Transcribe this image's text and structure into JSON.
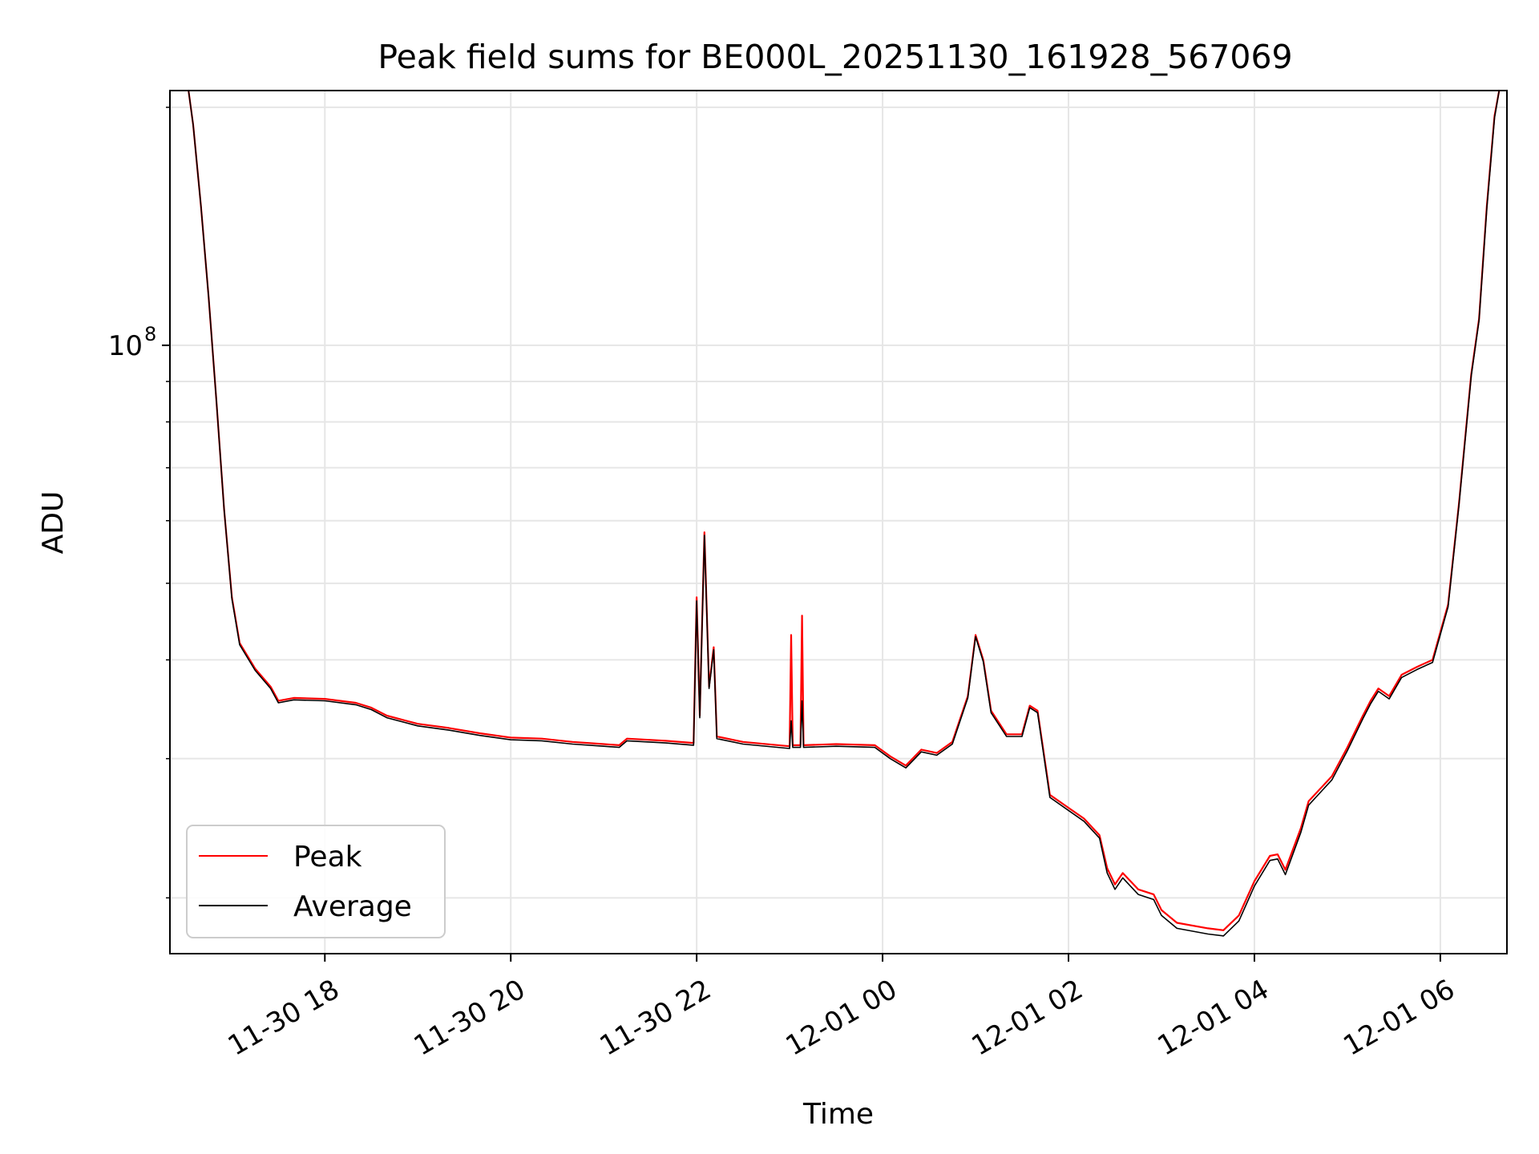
{
  "chart_data": {
    "type": "line",
    "title": "Peak field sums for BE000L_20251130_161928_567069",
    "xlabel": "Time",
    "ylabel": "ADU",
    "y_scale": "log",
    "grid": true,
    "legend_position": "lower-left",
    "x_ticks": [
      "11-30 18",
      "11-30 20",
      "11-30 22",
      "12-01 00",
      "12-01 02",
      "12-01 04",
      "12-01 06"
    ],
    "y_ticks": [
      {
        "label": "10",
        "exponent": "8",
        "value": 100000000
      }
    ],
    "xlim": [
      "2025-11-30 16:20",
      "2025-12-01 06:43"
    ],
    "ylim": [
      17000000,
      210000000
    ],
    "series": [
      {
        "name": "Peak",
        "color": "#ff0000",
        "points": [
          [
            "2025-11-30 16:32",
            210000000
          ],
          [
            "2025-11-30 16:35",
            190000000
          ],
          [
            "2025-11-30 16:40",
            150000000
          ],
          [
            "2025-11-30 16:45",
            115000000
          ],
          [
            "2025-11-30 16:50",
            85000000
          ],
          [
            "2025-11-30 16:55",
            62000000
          ],
          [
            "2025-11-30 17:00",
            48000000
          ],
          [
            "2025-11-30 17:05",
            42000000
          ],
          [
            "2025-11-30 17:15",
            39000000
          ],
          [
            "2025-11-30 17:25",
            37000000
          ],
          [
            "2025-11-30 17:30",
            35500000
          ],
          [
            "2025-11-30 17:40",
            35800000
          ],
          [
            "2025-11-30 18:00",
            35700000
          ],
          [
            "2025-11-30 18:20",
            35300000
          ],
          [
            "2025-11-30 18:30",
            34800000
          ],
          [
            "2025-11-30 18:40",
            34000000
          ],
          [
            "2025-11-30 19:00",
            33200000
          ],
          [
            "2025-11-30 19:20",
            32800000
          ],
          [
            "2025-11-30 19:40",
            32300000
          ],
          [
            "2025-11-30 20:00",
            31900000
          ],
          [
            "2025-11-30 20:20",
            31800000
          ],
          [
            "2025-11-30 20:40",
            31500000
          ],
          [
            "2025-11-30 21:00",
            31300000
          ],
          [
            "2025-11-30 21:10",
            31200000
          ],
          [
            "2025-11-30 21:15",
            31800000
          ],
          [
            "2025-11-30 21:40",
            31600000
          ],
          [
            "2025-11-30 21:58",
            31400000
          ],
          [
            "2025-11-30 22:00",
            48000000
          ],
          [
            "2025-11-30 22:02",
            34000000
          ],
          [
            "2025-11-30 22:05",
            58000000
          ],
          [
            "2025-11-30 22:08",
            37000000
          ],
          [
            "2025-11-30 22:11",
            41500000
          ],
          [
            "2025-11-30 22:13",
            32000000
          ],
          [
            "2025-11-30 22:30",
            31500000
          ],
          [
            "2025-11-30 23:00",
            31100000
          ],
          [
            "2025-11-30 23:01",
            43000000
          ],
          [
            "2025-11-30 23:02",
            31200000
          ],
          [
            "2025-11-30 23:07",
            31200000
          ],
          [
            "2025-11-30 23:08",
            45500000
          ],
          [
            "2025-11-30 23:09",
            31200000
          ],
          [
            "2025-11-30 23:30",
            31300000
          ],
          [
            "2025-11-30 23:55",
            31200000
          ],
          [
            "2025-12-01 00:05",
            30200000
          ],
          [
            "2025-12-01 00:15",
            29400000
          ],
          [
            "2025-12-01 00:25",
            30800000
          ],
          [
            "2025-12-01 00:35",
            30500000
          ],
          [
            "2025-12-01 00:45",
            31500000
          ],
          [
            "2025-12-01 00:55",
            36000000
          ],
          [
            "2025-12-01 01:00",
            43000000
          ],
          [
            "2025-12-01 01:05",
            40000000
          ],
          [
            "2025-12-01 01:10",
            34500000
          ],
          [
            "2025-12-01 01:20",
            32200000
          ],
          [
            "2025-12-01 01:30",
            32200000
          ],
          [
            "2025-12-01 01:35",
            35000000
          ],
          [
            "2025-12-01 01:40",
            34500000
          ],
          [
            "2025-12-01 01:48",
            27000000
          ],
          [
            "2025-12-01 02:00",
            26000000
          ],
          [
            "2025-12-01 02:10",
            25200000
          ],
          [
            "2025-12-01 02:20",
            24000000
          ],
          [
            "2025-12-01 02:25",
            21800000
          ],
          [
            "2025-12-01 02:30",
            20800000
          ],
          [
            "2025-12-01 02:35",
            21500000
          ],
          [
            "2025-12-01 02:45",
            20500000
          ],
          [
            "2025-12-01 02:55",
            20200000
          ],
          [
            "2025-12-01 03:00",
            19300000
          ],
          [
            "2025-12-01 03:10",
            18600000
          ],
          [
            "2025-12-01 03:30",
            18300000
          ],
          [
            "2025-12-01 03:40",
            18200000
          ],
          [
            "2025-12-01 03:50",
            19000000
          ],
          [
            "2025-12-01 04:00",
            21000000
          ],
          [
            "2025-12-01 04:10",
            22600000
          ],
          [
            "2025-12-01 04:15",
            22700000
          ],
          [
            "2025-12-01 04:20",
            21700000
          ],
          [
            "2025-12-01 04:30",
            24500000
          ],
          [
            "2025-12-01 04:35",
            26500000
          ],
          [
            "2025-12-01 04:50",
            28500000
          ],
          [
            "2025-12-01 05:00",
            31000000
          ],
          [
            "2025-12-01 05:10",
            34000000
          ],
          [
            "2025-12-01 05:15",
            35500000
          ],
          [
            "2025-12-01 05:20",
            36800000
          ],
          [
            "2025-12-01 05:27",
            36000000
          ],
          [
            "2025-12-01 05:35",
            38300000
          ],
          [
            "2025-12-01 05:45",
            39200000
          ],
          [
            "2025-12-01 05:55",
            40000000
          ],
          [
            "2025-12-01 06:05",
            47000000
          ],
          [
            "2025-12-01 06:12",
            63000000
          ],
          [
            "2025-12-01 06:20",
            92000000
          ],
          [
            "2025-12-01 06:25",
            108000000
          ],
          [
            "2025-12-01 06:30",
            150000000
          ],
          [
            "2025-12-01 06:35",
            195000000
          ],
          [
            "2025-12-01 06:38",
            210000000
          ]
        ]
      },
      {
        "name": "Average",
        "color": "#000000",
        "points": [
          [
            "2025-11-30 16:32",
            210000000
          ],
          [
            "2025-11-30 16:35",
            190000000
          ],
          [
            "2025-11-30 16:40",
            150000000
          ],
          [
            "2025-11-30 16:45",
            115000000
          ],
          [
            "2025-11-30 16:50",
            85000000
          ],
          [
            "2025-11-30 16:55",
            62000000
          ],
          [
            "2025-11-30 17:00",
            47800000
          ],
          [
            "2025-11-30 17:05",
            41800000
          ],
          [
            "2025-11-30 17:15",
            38800000
          ],
          [
            "2025-11-30 17:25",
            36800000
          ],
          [
            "2025-11-30 17:30",
            35300000
          ],
          [
            "2025-11-30 17:40",
            35600000
          ],
          [
            "2025-11-30 18:00",
            35500000
          ],
          [
            "2025-11-30 18:20",
            35100000
          ],
          [
            "2025-11-30 18:30",
            34600000
          ],
          [
            "2025-11-30 18:40",
            33800000
          ],
          [
            "2025-11-30 19:00",
            33000000
          ],
          [
            "2025-11-30 19:20",
            32600000
          ],
          [
            "2025-11-30 19:40",
            32100000
          ],
          [
            "2025-11-30 20:00",
            31700000
          ],
          [
            "2025-11-30 20:20",
            31600000
          ],
          [
            "2025-11-30 20:40",
            31300000
          ],
          [
            "2025-11-30 21:00",
            31100000
          ],
          [
            "2025-11-30 21:10",
            31000000
          ],
          [
            "2025-11-30 21:15",
            31600000
          ],
          [
            "2025-11-30 21:40",
            31400000
          ],
          [
            "2025-11-30 21:58",
            31200000
          ],
          [
            "2025-11-30 22:00",
            47500000
          ],
          [
            "2025-11-30 22:02",
            33800000
          ],
          [
            "2025-11-30 22:05",
            57500000
          ],
          [
            "2025-11-30 22:08",
            36800000
          ],
          [
            "2025-11-30 22:11",
            41200000
          ],
          [
            "2025-11-30 22:13",
            31800000
          ],
          [
            "2025-11-30 22:30",
            31300000
          ],
          [
            "2025-11-30 23:00",
            30900000
          ],
          [
            "2025-11-30 23:01",
            33500000
          ],
          [
            "2025-11-30 23:02",
            31000000
          ],
          [
            "2025-11-30 23:07",
            31000000
          ],
          [
            "2025-11-30 23:08",
            35500000
          ],
          [
            "2025-11-30 23:09",
            31000000
          ],
          [
            "2025-11-30 23:30",
            31100000
          ],
          [
            "2025-11-30 23:55",
            31000000
          ],
          [
            "2025-12-01 00:05",
            30000000
          ],
          [
            "2025-12-01 00:15",
            29200000
          ],
          [
            "2025-12-01 00:25",
            30600000
          ],
          [
            "2025-12-01 00:35",
            30300000
          ],
          [
            "2025-12-01 00:45",
            31300000
          ],
          [
            "2025-12-01 00:55",
            35800000
          ],
          [
            "2025-12-01 01:00",
            42800000
          ],
          [
            "2025-12-01 01:05",
            39800000
          ],
          [
            "2025-12-01 01:10",
            34300000
          ],
          [
            "2025-12-01 01:20",
            32000000
          ],
          [
            "2025-12-01 01:30",
            32000000
          ],
          [
            "2025-12-01 01:35",
            34800000
          ],
          [
            "2025-12-01 01:40",
            34300000
          ],
          [
            "2025-12-01 01:48",
            26800000
          ],
          [
            "2025-12-01 02:00",
            25800000
          ],
          [
            "2025-12-01 02:10",
            25000000
          ],
          [
            "2025-12-01 02:20",
            23800000
          ],
          [
            "2025-12-01 02:25",
            21500000
          ],
          [
            "2025-12-01 02:30",
            20500000
          ],
          [
            "2025-12-01 02:35",
            21200000
          ],
          [
            "2025-12-01 02:45",
            20200000
          ],
          [
            "2025-12-01 02:55",
            19900000
          ],
          [
            "2025-12-01 03:00",
            19000000
          ],
          [
            "2025-12-01 03:10",
            18300000
          ],
          [
            "2025-12-01 03:30",
            18000000
          ],
          [
            "2025-12-01 03:40",
            17900000
          ],
          [
            "2025-12-01 03:50",
            18700000
          ],
          [
            "2025-12-01 04:00",
            20700000
          ],
          [
            "2025-12-01 04:10",
            22300000
          ],
          [
            "2025-12-01 04:15",
            22400000
          ],
          [
            "2025-12-01 04:20",
            21400000
          ],
          [
            "2025-12-01 04:30",
            24200000
          ],
          [
            "2025-12-01 04:35",
            26200000
          ],
          [
            "2025-12-01 04:50",
            28200000
          ],
          [
            "2025-12-01 05:00",
            30700000
          ],
          [
            "2025-12-01 05:10",
            33700000
          ],
          [
            "2025-12-01 05:15",
            35200000
          ],
          [
            "2025-12-01 05:20",
            36500000
          ],
          [
            "2025-12-01 05:27",
            35700000
          ],
          [
            "2025-12-01 05:35",
            38000000
          ],
          [
            "2025-12-01 05:45",
            38900000
          ],
          [
            "2025-12-01 05:55",
            39700000
          ],
          [
            "2025-12-01 06:05",
            46700000
          ],
          [
            "2025-12-01 06:12",
            62700000
          ],
          [
            "2025-12-01 06:20",
            91500000
          ],
          [
            "2025-12-01 06:25",
            107500000
          ],
          [
            "2025-12-01 06:30",
            149000000
          ],
          [
            "2025-12-01 06:35",
            194000000
          ],
          [
            "2025-12-01 06:38",
            210000000
          ]
        ]
      }
    ]
  }
}
